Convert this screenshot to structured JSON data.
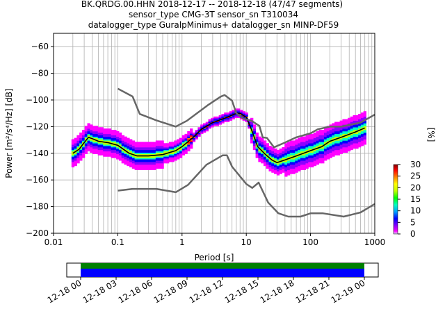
{
  "title_lines": [
    "BK.QRDG.00.HHN   2018-12-17 -- 2018-12-18  (47/47 segments)",
    "sensor_type CMG-3T sensor_sn T310034",
    "datalogger_type GuralpMinimus+ datalogger_sn MINP-DF59"
  ],
  "colorbar": {
    "label": "[%]",
    "ticks": [
      "0",
      "5",
      "10",
      "15",
      "20",
      "25",
      "30"
    ],
    "colors": [
      "#d8d8ff",
      "#ff00ff",
      "#8a00ff",
      "#0000ff",
      "#00a0ff",
      "#00ffc0",
      "#00ff00",
      "#c0ff00",
      "#ffff00",
      "#ff8000",
      "#ff0000",
      "#800000"
    ]
  },
  "timeline": {
    "tick_labels": [
      "12-18 00",
      "12-18 03",
      "12-18 06",
      "12-18 09",
      "12-18 12",
      "12-18 15",
      "12-18 18",
      "12-18 21",
      "12-19 00"
    ],
    "colors": {
      "coverage": "#008000",
      "data": "#0000ff"
    }
  },
  "chart_data": {
    "type": "heatmap",
    "xlabel": "Period [s]",
    "ylabel": "Power [m²/s⁴/Hz] [dB]",
    "xscale": "log",
    "xlim": [
      0.01,
      1000
    ],
    "ylim": [
      -200,
      -50
    ],
    "xtick_labels": [
      "0.01",
      "0.1",
      "1",
      "10",
      "100",
      "1000"
    ],
    "xtick_values": [
      0.01,
      0.1,
      1,
      10,
      100,
      1000
    ],
    "ytick_values": [
      -200,
      -180,
      -160,
      -140,
      -120,
      -100,
      -80,
      -60
    ],
    "ytick_labels": [
      "−200",
      "−180",
      "−160",
      "−140",
      "−120",
      "−100",
      "−80",
      "−60"
    ],
    "grid": true,
    "series": [
      {
        "role": "mode",
        "color": "#000000",
        "x": [
          0.02,
          0.025,
          0.03,
          0.035,
          0.04,
          0.05,
          0.07,
          0.1,
          0.15,
          0.2,
          0.3,
          0.5,
          0.8,
          1,
          1.5,
          2,
          3,
          5,
          7,
          8,
          10,
          12,
          15,
          20,
          25,
          30,
          40,
          60,
          100,
          150,
          200,
          300,
          500,
          700
        ],
        "y": [
          -140,
          -137,
          -132,
          -128,
          -129,
          -131,
          -132,
          -134,
          -140,
          -142,
          -142,
          -141,
          -138,
          -135,
          -128,
          -122,
          -117,
          -113,
          -110,
          -110,
          -113,
          -122,
          -135,
          -141,
          -145,
          -147,
          -145,
          -142,
          -138,
          -135,
          -131,
          -128,
          -124,
          -121
        ]
      },
      {
        "role": "noise model",
        "color": "#666666",
        "x": [
          0.1,
          0.17,
          0.22,
          0.4,
          0.8,
          1.2,
          2.5,
          4,
          4.6,
          6,
          7,
          9,
          12,
          16,
          18,
          21,
          27,
          40,
          60,
          100,
          130,
          200,
          300,
          600,
          1000
        ],
        "y": [
          -91.5,
          -97.4,
          -110.5,
          -115.3,
          -120,
          -115.5,
          -104,
          -97.5,
          -96.3,
          -100.5,
          -110,
          -114,
          -115.5,
          -119.5,
          -128,
          -128.5,
          -135.5,
          -132,
          -128,
          -125,
          -122,
          -120,
          -120,
          -117,
          -111
        ]
      },
      {
        "role": "noise model",
        "color": "#666666",
        "x": [
          0.1,
          0.17,
          0.4,
          0.8,
          1.24,
          2.4,
          4.3,
          5,
          6,
          10,
          12.4,
          15.6,
          21.9,
          31.6,
          45,
          70,
          101,
          154,
          328,
          600,
          1000
        ],
        "y": [
          -168,
          -166.7,
          -166.7,
          -169.2,
          -163.7,
          -148.6,
          -141.5,
          -141.5,
          -150,
          -163,
          -166,
          -162,
          -177,
          -185,
          -187.5,
          -187.5,
          -185,
          -185,
          -187.5,
          -184.4,
          -178
        ]
      }
    ]
  }
}
